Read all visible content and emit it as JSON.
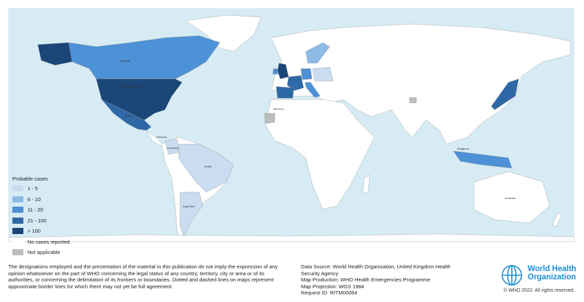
{
  "legend": {
    "title": "Probable cases",
    "items": [
      {
        "label": "1 - 5",
        "color": "#c9dcf0"
      },
      {
        "label": "6 - 10",
        "color": "#8dbbe6"
      },
      {
        "label": "11 - 20",
        "color": "#4d91d6"
      },
      {
        "label": "21 - 100",
        "color": "#2f68a6"
      },
      {
        "label": "> 100",
        "color": "#1b4678"
      },
      {
        "label": "No cases reported",
        "color": "#ffffff"
      },
      {
        "label": "Not applicable",
        "color": "#bdbdbd"
      }
    ]
  },
  "map_labels": [
    "Canada",
    "United States of America",
    "Mexico",
    "Panama",
    "Colombia",
    "Brazil",
    "Argentina",
    "Morocco",
    "Singapore",
    "Australia"
  ],
  "disclaimer": "The designations employed and the presentation of the material in this publication do not imply the expression of any opinion whatsoever on the part of WHO concerning the legal status of any country, territory, city or area or of its authorities, or concerning the delimitation of its frontiers or boundaries. Dotted and dashed lines on maps represent approximate border lines for which there may not yet be full agreement.",
  "source": [
    "Data Source: World Health Organization, United Kingdom Health Security Agency",
    "Map Production: WHO Health Emergencies Programme",
    "Map Projection: WGS 1984",
    "Request ID: RITM00064"
  ],
  "logo": {
    "line1": "World Health",
    "line2": "Organization"
  },
  "copyright": "© WHO 2022. All rights reserved."
}
